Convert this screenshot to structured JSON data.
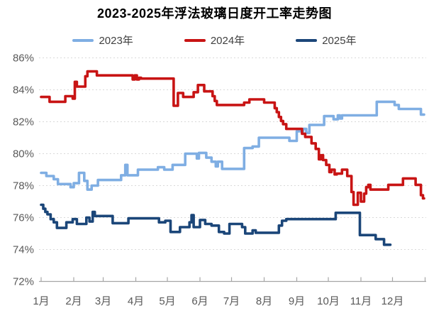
{
  "header": {
    "title": "2023-2025年浮法玻璃日度开工率走势图"
  },
  "styles": {
    "background": "#FFFFFF",
    "title_color": "#000000",
    "grid_color": "#D9D9D9",
    "axis_color": "#A6A6A6",
    "tick_label_color": "#595959",
    "legend_text_color": "#404040"
  },
  "chart_data": {
    "type": "line",
    "title": "2023-2025年浮法玻璃日度开工率走势图",
    "xlabel": "",
    "ylabel": "",
    "unit": "%",
    "legend_position": "top",
    "grid": "horizontal-dashed",
    "interpolation": "step-after",
    "ylim": [
      72,
      86
    ],
    "y_tick_labels": [
      "86%",
      "84%",
      "82%",
      "80%",
      "78%",
      "76%",
      "74%",
      "72%"
    ],
    "y_tick_values": [
      86,
      84,
      82,
      80,
      78,
      76,
      74,
      72
    ],
    "x_tick_labels": [
      "1月",
      "2月",
      "3月",
      "4月",
      "5月",
      "6月",
      "7月",
      "8月",
      "9月",
      "10月",
      "11月",
      "12月"
    ],
    "month_start_days": [
      1,
      32,
      60,
      91,
      121,
      152,
      182,
      213,
      244,
      274,
      305,
      335,
      366
    ],
    "x_days_total": 366,
    "series": [
      {
        "name": "2023年",
        "color": "#7FAEE3",
        "points": [
          [
            1,
            78.8
          ],
          [
            6,
            78.6
          ],
          [
            13,
            78.4
          ],
          [
            17,
            78.1
          ],
          [
            29,
            77.9
          ],
          [
            32,
            78.15
          ],
          [
            37,
            78.8
          ],
          [
            42,
            78.3
          ],
          [
            45,
            77.75
          ],
          [
            49,
            78.0
          ],
          [
            55,
            78.35
          ],
          [
            77,
            78.65
          ],
          [
            81,
            79.3
          ],
          [
            83,
            78.65
          ],
          [
            93,
            79.0
          ],
          [
            112,
            79.15
          ],
          [
            118,
            79.0
          ],
          [
            126,
            79.3
          ],
          [
            138,
            80.0
          ],
          [
            149,
            79.7
          ],
          [
            151,
            80.05
          ],
          [
            158,
            79.75
          ],
          [
            163,
            79.5
          ],
          [
            167,
            79.2
          ],
          [
            169,
            79.5
          ],
          [
            173,
            79.05
          ],
          [
            194,
            80.35
          ],
          [
            202,
            80.45
          ],
          [
            208,
            81.0
          ],
          [
            237,
            80.8
          ],
          [
            244,
            81.4
          ],
          [
            250,
            81.55
          ],
          [
            253,
            81.3
          ],
          [
            256,
            81.8
          ],
          [
            270,
            82.35
          ],
          [
            279,
            82.15
          ],
          [
            283,
            82.4
          ],
          [
            285,
            82.2
          ],
          [
            287,
            82.4
          ],
          [
            320,
            83.25
          ],
          [
            337,
            83.05
          ],
          [
            341,
            82.8
          ],
          [
            362,
            82.45
          ],
          [
            365,
            82.45
          ]
        ]
      },
      {
        "name": "2024年",
        "color": "#C81414",
        "points": [
          [
            1,
            83.55
          ],
          [
            9,
            83.25
          ],
          [
            24,
            83.6
          ],
          [
            31,
            83.45
          ],
          [
            33,
            84.5
          ],
          [
            35,
            84.2
          ],
          [
            43,
            84.85
          ],
          [
            45,
            85.15
          ],
          [
            54,
            84.9
          ],
          [
            88,
            84.65
          ],
          [
            90,
            84.9
          ],
          [
            92,
            84.65
          ],
          [
            94,
            84.75
          ],
          [
            96,
            84.7
          ],
          [
            127,
            83.0
          ],
          [
            131,
            83.8
          ],
          [
            136,
            83.55
          ],
          [
            146,
            83.85
          ],
          [
            150,
            84.3
          ],
          [
            156,
            83.9
          ],
          [
            164,
            83.6
          ],
          [
            166,
            83.3
          ],
          [
            168,
            83.05
          ],
          [
            194,
            83.2
          ],
          [
            199,
            83.4
          ],
          [
            213,
            83.2
          ],
          [
            223,
            82.85
          ],
          [
            225,
            82.6
          ],
          [
            227,
            82.3
          ],
          [
            229,
            82.05
          ],
          [
            231,
            81.85
          ],
          [
            234,
            81.55
          ],
          [
            249,
            81.25
          ],
          [
            252,
            81.05
          ],
          [
            258,
            80.65
          ],
          [
            262,
            80.3
          ],
          [
            265,
            79.65
          ],
          [
            267,
            79.9
          ],
          [
            269,
            79.6
          ],
          [
            272,
            79.3
          ],
          [
            275,
            78.85
          ],
          [
            277,
            79.0
          ],
          [
            280,
            78.7
          ],
          [
            282,
            78.75
          ],
          [
            287,
            79.0
          ],
          [
            292,
            78.6
          ],
          [
            296,
            77.6
          ],
          [
            298,
            76.8
          ],
          [
            302,
            77.55
          ],
          [
            305,
            77.0
          ],
          [
            308,
            77.5
          ],
          [
            310,
            77.9
          ],
          [
            312,
            78.05
          ],
          [
            314,
            77.75
          ],
          [
            331,
            78.05
          ],
          [
            345,
            78.45
          ],
          [
            357,
            78.05
          ],
          [
            362,
            77.4
          ],
          [
            364,
            77.2
          ],
          [
            365,
            77.2
          ]
        ]
      },
      {
        "name": "2025年",
        "color": "#1B4679",
        "points": [
          [
            1,
            76.8
          ],
          [
            3,
            76.55
          ],
          [
            5,
            76.35
          ],
          [
            7,
            76.2
          ],
          [
            10,
            75.9
          ],
          [
            13,
            75.7
          ],
          [
            16,
            75.35
          ],
          [
            25,
            75.7
          ],
          [
            31,
            75.9
          ],
          [
            35,
            75.6
          ],
          [
            44,
            76.0
          ],
          [
            47,
            75.75
          ],
          [
            50,
            76.35
          ],
          [
            52,
            76.1
          ],
          [
            69,
            75.65
          ],
          [
            84,
            75.95
          ],
          [
            113,
            75.7
          ],
          [
            119,
            75.8
          ],
          [
            124,
            75.1
          ],
          [
            133,
            75.4
          ],
          [
            142,
            75.7
          ],
          [
            144,
            76.15
          ],
          [
            146,
            75.4
          ],
          [
            152,
            75.85
          ],
          [
            157,
            75.6
          ],
          [
            163,
            75.5
          ],
          [
            170,
            75.1
          ],
          [
            175,
            75.0
          ],
          [
            180,
            75.6
          ],
          [
            192,
            75.4
          ],
          [
            195,
            75.0
          ],
          [
            202,
            75.2
          ],
          [
            205,
            75.05
          ],
          [
            227,
            75.5
          ],
          [
            230,
            75.8
          ],
          [
            234,
            75.9
          ],
          [
            281,
            76.3
          ],
          [
            304,
            74.9
          ],
          [
            319,
            74.65
          ],
          [
            327,
            74.3
          ],
          [
            333,
            74.3
          ]
        ]
      }
    ]
  }
}
